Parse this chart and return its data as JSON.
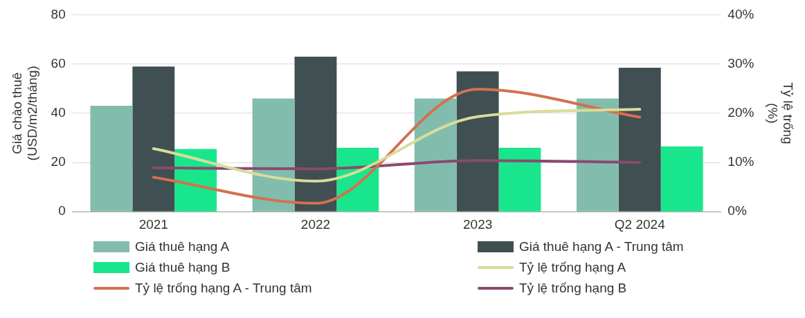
{
  "chart_data": {
    "type": "bar",
    "categories": [
      "2021",
      "2022",
      "2023",
      "Q2 2024"
    ],
    "ylabel": "Giá chào thuê\n(USD/m2/tháng)",
    "y2label": "Tỷ lệ trống\n(%)",
    "ylim": [
      0,
      80
    ],
    "yticks": [
      0,
      20,
      40,
      60,
      80
    ],
    "y2lim": [
      0,
      40
    ],
    "y2ticks": [
      {
        "value": 0,
        "label": "0%"
      },
      {
        "value": 10,
        "label": "10%"
      },
      {
        "value": 20,
        "label": "20%"
      },
      {
        "value": 30,
        "label": "30%"
      },
      {
        "value": 40,
        "label": "40%"
      }
    ],
    "grid": "y",
    "legend": "bottom",
    "marker": "none",
    "line_style": "solid",
    "series": [
      {
        "name": "Giá thuê hạng A",
        "color": "#82bcad",
        "values": [
          43,
          46,
          46,
          46
        ]
      },
      {
        "name": "Giá thuê hạng A - Trung tâm",
        "color": "#3f4f52",
        "values": [
          59,
          63,
          57,
          58.5
        ]
      },
      {
        "name": "Giá thuê hạng B",
        "color": "#19e68c",
        "values": [
          25.5,
          26,
          26,
          26.5
        ]
      },
      {
        "name": "Tỷ lệ trống hạng A",
        "type": "line",
        "axis": "y2",
        "color": "#d9dc9a",
        "values": [
          12.8,
          6.2,
          19.3,
          20.8
        ]
      },
      {
        "name": "Tỷ lệ trống hạng A - Trung tâm",
        "type": "line",
        "axis": "y2",
        "color": "#d4704f",
        "values": [
          7.0,
          1.7,
          24.9,
          19.2
        ]
      },
      {
        "name": "Tỷ lệ trống hạng B",
        "type": "line",
        "axis": "y2",
        "color": "#8a4a6e",
        "values": [
          8.9,
          8.7,
          10.4,
          10.0
        ]
      }
    ]
  }
}
